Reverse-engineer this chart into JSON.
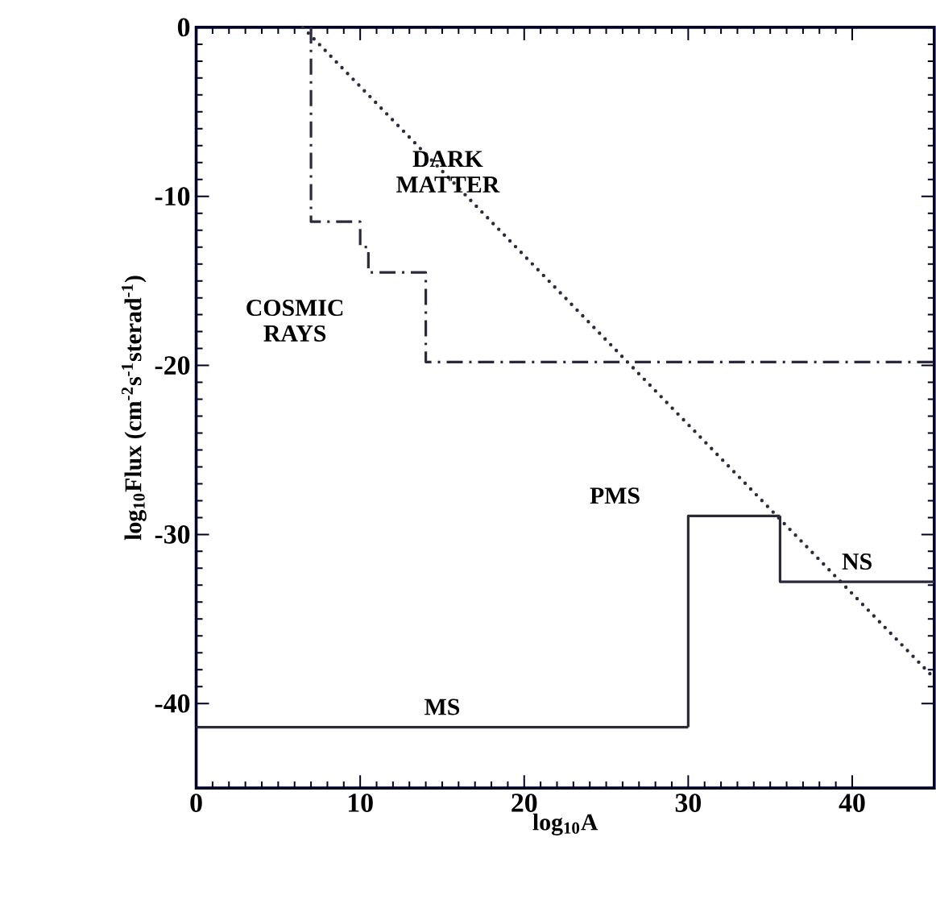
{
  "chart_data": {
    "type": "line",
    "xlabel": "log$_{10}$A",
    "ylabel": "log$_{10}$Flux (cm$^{-2}$s$^{-1}$sterad$^{-1}$)",
    "xlim": [
      0,
      45
    ],
    "ylim": [
      -45,
      0
    ],
    "xticks": [
      0,
      10,
      20,
      30,
      40
    ],
    "yticks": [
      -40,
      -30,
      -20,
      -10,
      0
    ],
    "marker": "none",
    "series": [
      {
        "name": "DARK MATTER",
        "color": "#2a2a3a",
        "line_style": "dotted",
        "x": [
          6.5,
          45
        ],
        "values": [
          0,
          -38.5
        ]
      },
      {
        "name": "COSMIC RAYS",
        "color": "#2a2a3a",
        "line_style": "dashdot",
        "x": [
          7,
          7,
          10,
          10,
          10.5,
          10.5,
          14,
          14,
          45
        ],
        "values": [
          0,
          -11.5,
          -11.5,
          -13,
          -13,
          -14.5,
          -14.5,
          -19.8,
          -19.8
        ]
      },
      {
        "name": "MS",
        "color": "#2a2a3a",
        "line_style": "solid",
        "x": [
          0,
          30
        ],
        "values": [
          -41.4,
          -41.4
        ]
      },
      {
        "name": "PMS",
        "color": "#2a2a3a",
        "line_style": "solid",
        "x": [
          30,
          30,
          35.6
        ],
        "values": [
          -41.4,
          -28.9,
          -28.9
        ]
      },
      {
        "name": "NS",
        "color": "#2a2a3a",
        "line_style": "solid",
        "x": [
          35.6,
          35.6,
          45
        ],
        "values": [
          -28.9,
          -32.8,
          -32.8
        ]
      }
    ]
  }
}
